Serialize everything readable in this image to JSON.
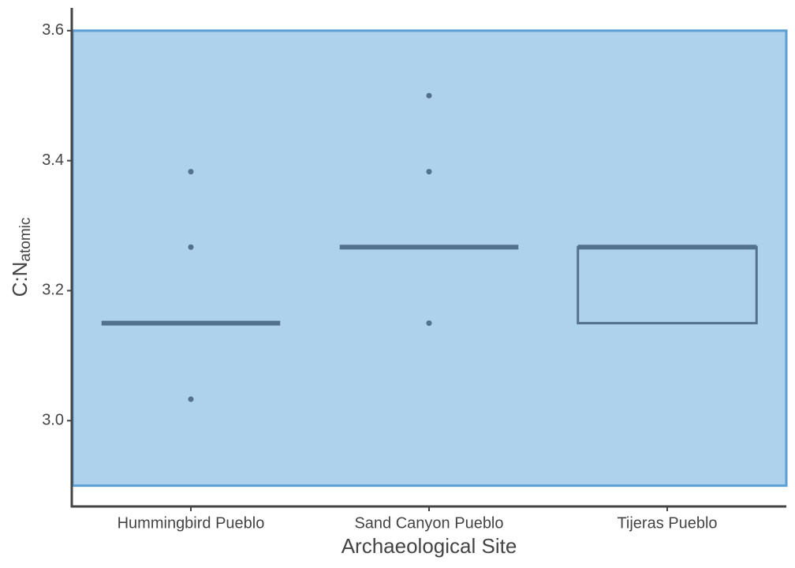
{
  "chart_data": {
    "type": "box",
    "x_label": "Archaeological Site",
    "y_label": "C:N",
    "y_label_subscript": "atomic",
    "categories": [
      "Hummingbird Pueblo",
      "Sand Canyon Pueblo",
      "Tijeras Pueblo"
    ],
    "boxes": [
      {
        "q1": 3.15,
        "median": 3.15,
        "q3": 3.15,
        "outliers": [
          3.383,
          3.267,
          3.033
        ]
      },
      {
        "q1": 3.267,
        "median": 3.267,
        "q3": 3.267,
        "outliers": [
          3.5,
          3.383,
          3.15
        ]
      },
      {
        "q1": 3.15,
        "median": 3.267,
        "q3": 3.267,
        "outliers": []
      }
    ],
    "color": "#52718c",
    "band": {
      "ymin": 2.9,
      "ymax": 3.6,
      "fill": "#aed2ec",
      "edge": "#5b9fd6"
    },
    "ylim": [
      2.868,
      3.635
    ],
    "yticks": [
      {
        "value": 3.0,
        "label": "3.0"
      },
      {
        "value": 3.2,
        "label": "3.2"
      },
      {
        "value": 3.4,
        "label": "3.4"
      },
      {
        "value": 3.6,
        "label": "3.6"
      }
    ]
  }
}
